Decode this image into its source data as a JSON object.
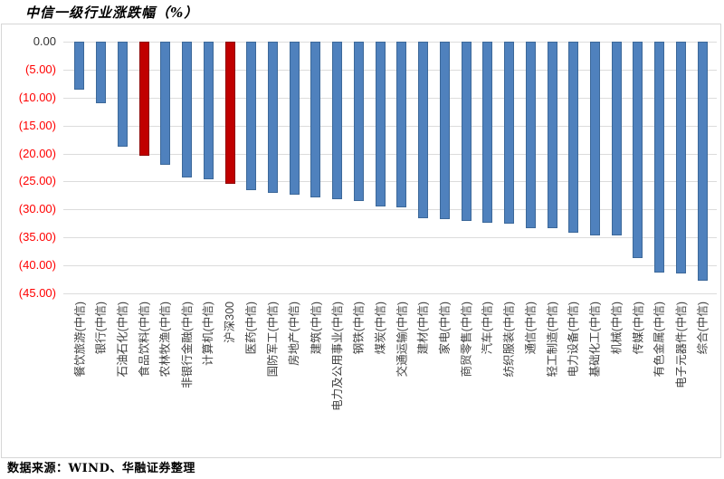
{
  "title": "中信一级行业涨跌幅（%）",
  "footer": "数据来源：WIND、华融证券整理",
  "colors": {
    "bar": "#4f81bd",
    "bar_border": "#3c6899",
    "highlight": "#c00000",
    "highlight_border": "#8e0000",
    "gridline": "#dcdcdc",
    "box_border": "#d6d6d6",
    "tick_zero": "#333333",
    "tick_negative": "#ff0000",
    "category_text": "#404040"
  },
  "y_axis": {
    "ticks": [
      "0.00",
      "(5.00)",
      "(10.00)",
      "(15.00)",
      "(20.00)",
      "(25.00)",
      "(30.00)",
      "(35.00)",
      "(40.00)",
      "(45.00)"
    ],
    "max": 0,
    "min": -45,
    "step": 5
  },
  "chart_data": {
    "type": "bar",
    "title": "中信一级行业涨跌幅（%）",
    "xlabel": "",
    "ylabel": "",
    "ylim": [
      -45,
      0
    ],
    "grid": true,
    "legend": false,
    "categories": [
      "餐饮旅游(中信)",
      "银行(中信)",
      "石油石化(中信)",
      "食品饮料(中信)",
      "农林牧渔(中信)",
      "非银行金融(中信)",
      "计算机(中信)",
      "沪深300",
      "医药(中信)",
      "国防军工(中信)",
      "房地产(中信)",
      "建筑(中信)",
      "电力及公用事业(中信)",
      "钢铁(中信)",
      "煤炭(中信)",
      "交通运输(中信)",
      "建材(中信)",
      "家电(中信)",
      "商贸零售(中信)",
      "汽车(中信)",
      "纺织服装(中信)",
      "通信(中信)",
      "轻工制造(中信)",
      "电力设备(中信)",
      "基础化工(中信)",
      "机械(中信)",
      "传媒(中信)",
      "有色金属(中信)",
      "电子元器件(中信)",
      "综合(中信)"
    ],
    "values": [
      -8.6,
      -11.0,
      -18.7,
      -20.4,
      -22.0,
      -24.3,
      -24.6,
      -25.4,
      -26.5,
      -27.0,
      -27.3,
      -27.8,
      -28.1,
      -28.5,
      -29.4,
      -29.6,
      -31.6,
      -31.7,
      -32.0,
      -32.4,
      -32.6,
      -33.3,
      -33.4,
      -34.2,
      -34.7,
      -34.7,
      -38.7,
      -41.2,
      -41.5,
      -42.8
    ],
    "highlight_indices": [
      3,
      7
    ],
    "highlighted_categories": [
      "食品饮料(中信)",
      "沪深300"
    ]
  }
}
